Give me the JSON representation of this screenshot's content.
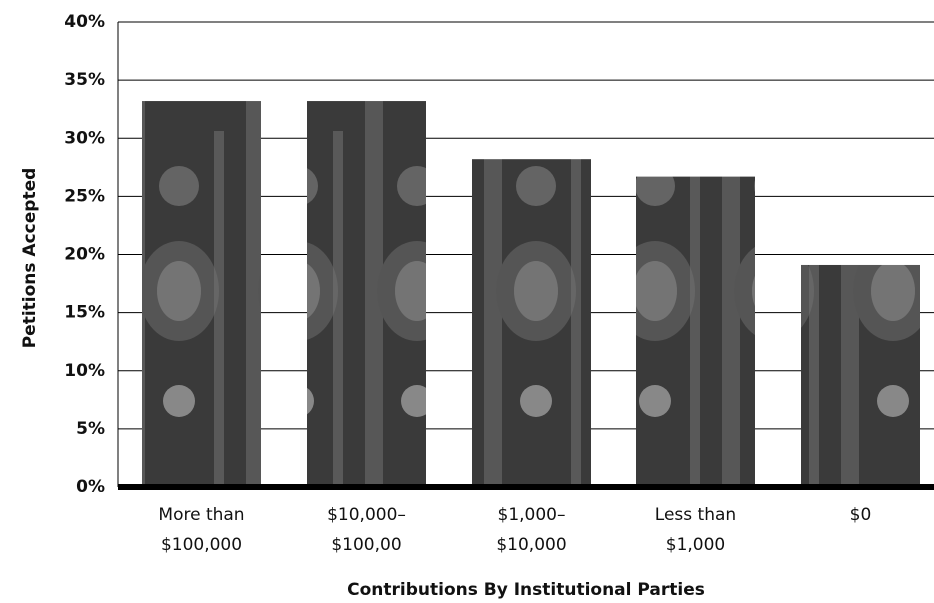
{
  "chart_data": {
    "type": "bar",
    "xlabel": "Contributions By Institutional Parties",
    "ylabel": "Petitions Accepted",
    "categories": [
      [
        "More than",
        "$100,000"
      ],
      [
        "$10,000–",
        "$100,00"
      ],
      [
        "$1,000–",
        "$10,000"
      ],
      [
        "Less than",
        "$1,000"
      ],
      [
        "$0"
      ]
    ],
    "values": [
      33.2,
      33.2,
      28.2,
      26.7,
      19.1
    ],
    "color": "#3a3a3a",
    "ylim": [
      0,
      40
    ],
    "yticks": [
      {
        "value": 0,
        "label": "0%"
      },
      {
        "value": 5,
        "label": "5%"
      },
      {
        "value": 10,
        "label": "10%"
      },
      {
        "value": 15,
        "label": "15%"
      },
      {
        "value": 20,
        "label": "20%"
      },
      {
        "value": 25,
        "label": "25%"
      },
      {
        "value": 30,
        "label": "30%"
      },
      {
        "value": 35,
        "label": "35%"
      },
      {
        "value": 40,
        "label": "40%"
      }
    ],
    "grid": true
  }
}
